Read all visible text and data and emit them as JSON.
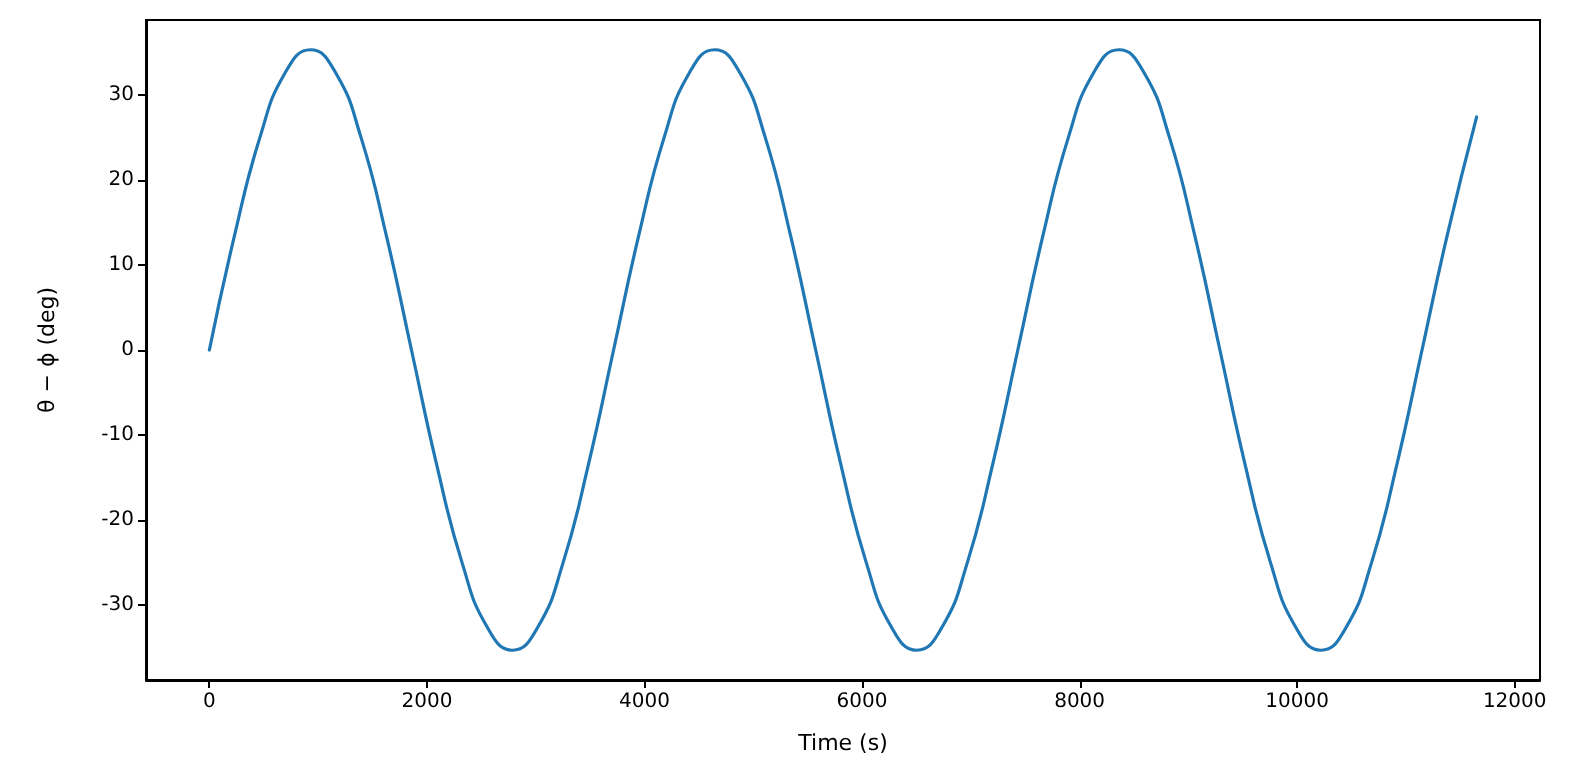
{
  "chart_data": {
    "type": "line",
    "xlabel": "Time (s)",
    "ylabel": "θ − ϕ (deg)",
    "x": [
      0,
      232,
      465,
      697,
      929,
      1161,
      1394,
      1626,
      1858,
      2090,
      2323,
      2555,
      2787,
      3019,
      3252,
      3484,
      3716,
      3948,
      4181,
      4413,
      4645,
      4877,
      5110,
      5342,
      5574,
      5806,
      6039,
      6271,
      6503,
      6735,
      6968,
      7200,
      7432,
      7664,
      7897,
      8129,
      8361,
      8593,
      8826,
      9058,
      9290,
      9522,
      9755,
      9987,
      10219,
      10451,
      10684,
      10916,
      11148,
      11380,
      11650
    ],
    "series": [
      {
        "color": "#1f77b4",
        "values": [
          0,
          13.5,
          25,
          32.6,
          35.3,
          32.6,
          25,
          13.5,
          0,
          -13.5,
          -25,
          -32.6,
          -35.3,
          -32.6,
          -25,
          -13.5,
          0,
          13.5,
          25,
          32.6,
          35.3,
          32.6,
          25,
          13.5,
          0,
          -13.5,
          -25,
          -32.6,
          -35.3,
          -32.6,
          -25,
          -13.5,
          0,
          13.5,
          25,
          32.6,
          35.3,
          32.6,
          25,
          13.5,
          0,
          -13.5,
          -25,
          -32.6,
          -35.3,
          -32.6,
          -25,
          -13.5,
          0,
          13.5,
          27.4
        ]
      }
    ],
    "xlim": [
      -582.5,
      12232.5
    ],
    "xticks": [
      0,
      2000,
      4000,
      6000,
      8000,
      10000,
      12000
    ],
    "ylim": [
      -38.8,
      38.8
    ],
    "yticks": [
      -30,
      -20,
      -10,
      0,
      10,
      20,
      30
    ],
    "grid": false,
    "marker": "none",
    "line_style": "solid"
  }
}
